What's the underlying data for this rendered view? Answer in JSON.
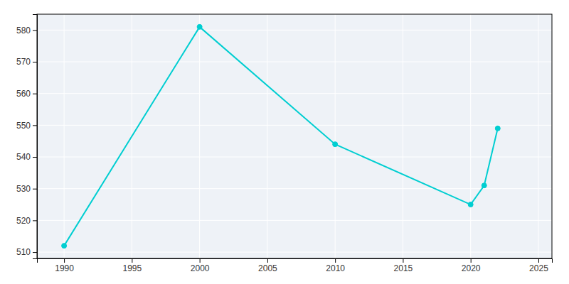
{
  "chart_data": {
    "type": "line",
    "x": [
      1990,
      2000,
      2010,
      2020,
      2021,
      2022
    ],
    "values": [
      512,
      581,
      544,
      525,
      531,
      549
    ],
    "color": "#00CED1",
    "marker": "o",
    "xlim": [
      1988,
      2026
    ],
    "ylim": [
      508,
      585
    ],
    "xticks": [
      1990,
      1995,
      2000,
      2005,
      2010,
      2015,
      2020,
      2025
    ],
    "yticks": [
      510,
      520,
      530,
      540,
      550,
      560,
      570,
      580
    ],
    "grid": true
  }
}
